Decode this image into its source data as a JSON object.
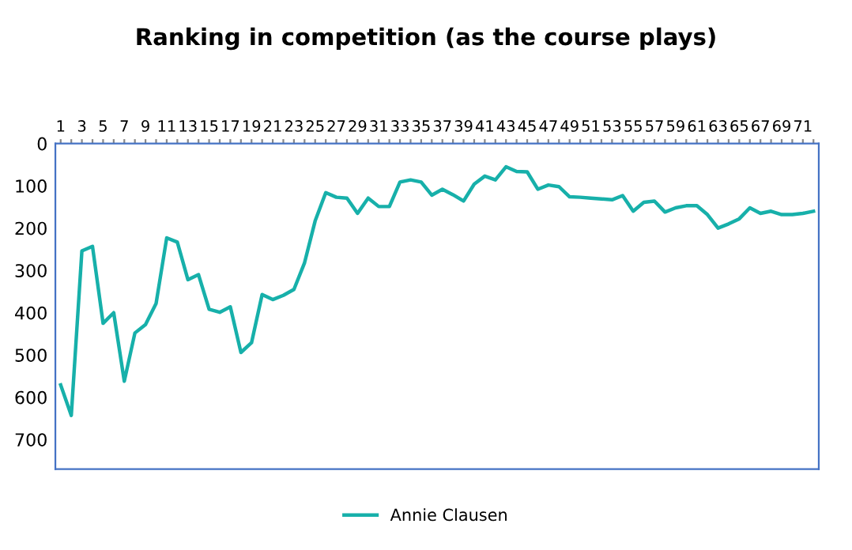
{
  "chart_data": {
    "type": "line",
    "title": "Ranking in competition (as the course plays)",
    "categories": [
      "1",
      null,
      "3",
      null,
      "5",
      null,
      "7",
      null,
      "9",
      null,
      "11",
      null,
      "13",
      null,
      "15",
      null,
      "17",
      null,
      "19",
      null,
      "21",
      null,
      "23",
      null,
      "25",
      null,
      "27",
      null,
      "29",
      null,
      "31",
      null,
      "33",
      null,
      "35",
      null,
      "37",
      null,
      "39",
      null,
      "41",
      null,
      "43",
      null,
      "45",
      null,
      "47",
      null,
      "49",
      null,
      "51",
      null,
      "53",
      null,
      "55",
      null,
      "57",
      null,
      "59",
      null,
      "61",
      null,
      "63",
      null,
      "65",
      null,
      "67",
      null,
      "69",
      null,
      "71",
      null
    ],
    "series": [
      {
        "name": "Annie Clausen",
        "color": "#17b0aa",
        "values": [
          571,
          643,
          254,
          243,
          425,
          400,
          562,
          448,
          428,
          378,
          223,
          233,
          322,
          310,
          392,
          399,
          386,
          494,
          471,
          357,
          369,
          359,
          345,
          282,
          183,
          116,
          127,
          129,
          165,
          129,
          149,
          149,
          91,
          86,
          91,
          122,
          108,
          121,
          136,
          96,
          77,
          86,
          55,
          66,
          67,
          108,
          98,
          102,
          126,
          127,
          129,
          131,
          133,
          123,
          160,
          139,
          136,
          162,
          152,
          147,
          147,
          168,
          200,
          190,
          178,
          152,
          165,
          160,
          168,
          168,
          165,
          160
        ]
      }
    ],
    "ylim": [
      770,
      0
    ],
    "yticks": [
      0,
      100,
      200,
      300,
      400,
      500,
      600,
      700
    ],
    "grid": false,
    "legend": "bottom",
    "marker": "none",
    "line_style": "solid"
  }
}
